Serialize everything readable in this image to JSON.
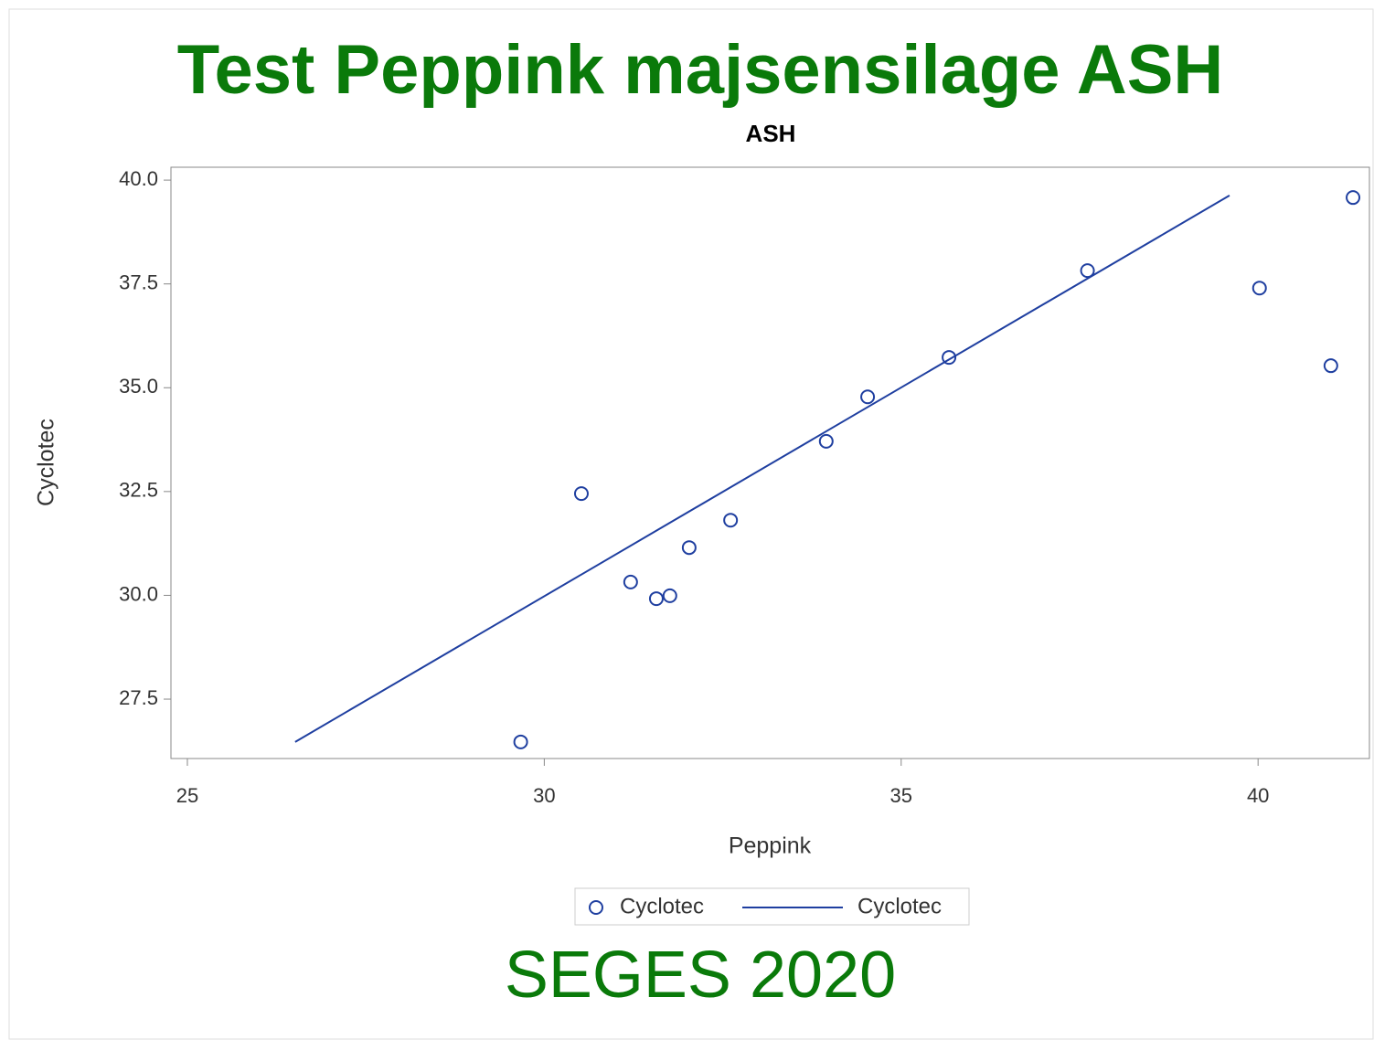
{
  "chart_data": {
    "type": "scatter",
    "title": "Test Peppink majsensilage ASH",
    "subtitle": "ASH",
    "footnote": "SEGES 2020",
    "x_label": "Peppink",
    "y_label": "Cyclotec",
    "xlim": [
      24.77,
      41.56
    ],
    "ylim": [
      26.07,
      40.31
    ],
    "xticks": [
      25,
      30,
      35,
      40
    ],
    "yticks": [
      {
        "value": 40,
        "label": "40.0"
      },
      {
        "value": 37.5,
        "label": "37.5"
      },
      {
        "value": 35,
        "label": "35.0"
      },
      {
        "value": 32.5,
        "label": "32.5"
      },
      {
        "value": 30,
        "label": "30.0"
      },
      {
        "value": 27.5,
        "label": "27.5"
      }
    ],
    "series": [
      {
        "name": "Cyclotec",
        "color": "#1f3fa0",
        "type": "scatter",
        "x": [
          29.67,
          30.52,
          31.21,
          31.57,
          31.76,
          32.03,
          32.61,
          33.95,
          34.53,
          35.67,
          37.61,
          40.02,
          41.02,
          41.33
        ],
        "values": [
          26.47,
          32.45,
          30.32,
          29.92,
          29.99,
          31.15,
          31.81,
          33.71,
          34.78,
          35.73,
          37.82,
          37.4,
          35.53,
          39.58
        ]
      },
      {
        "name": "Cyclotec",
        "color": "#1f3fa0",
        "type": "line",
        "x": [
          26.51,
          39.6
        ],
        "values": [
          26.47,
          39.63
        ]
      }
    ]
  }
}
